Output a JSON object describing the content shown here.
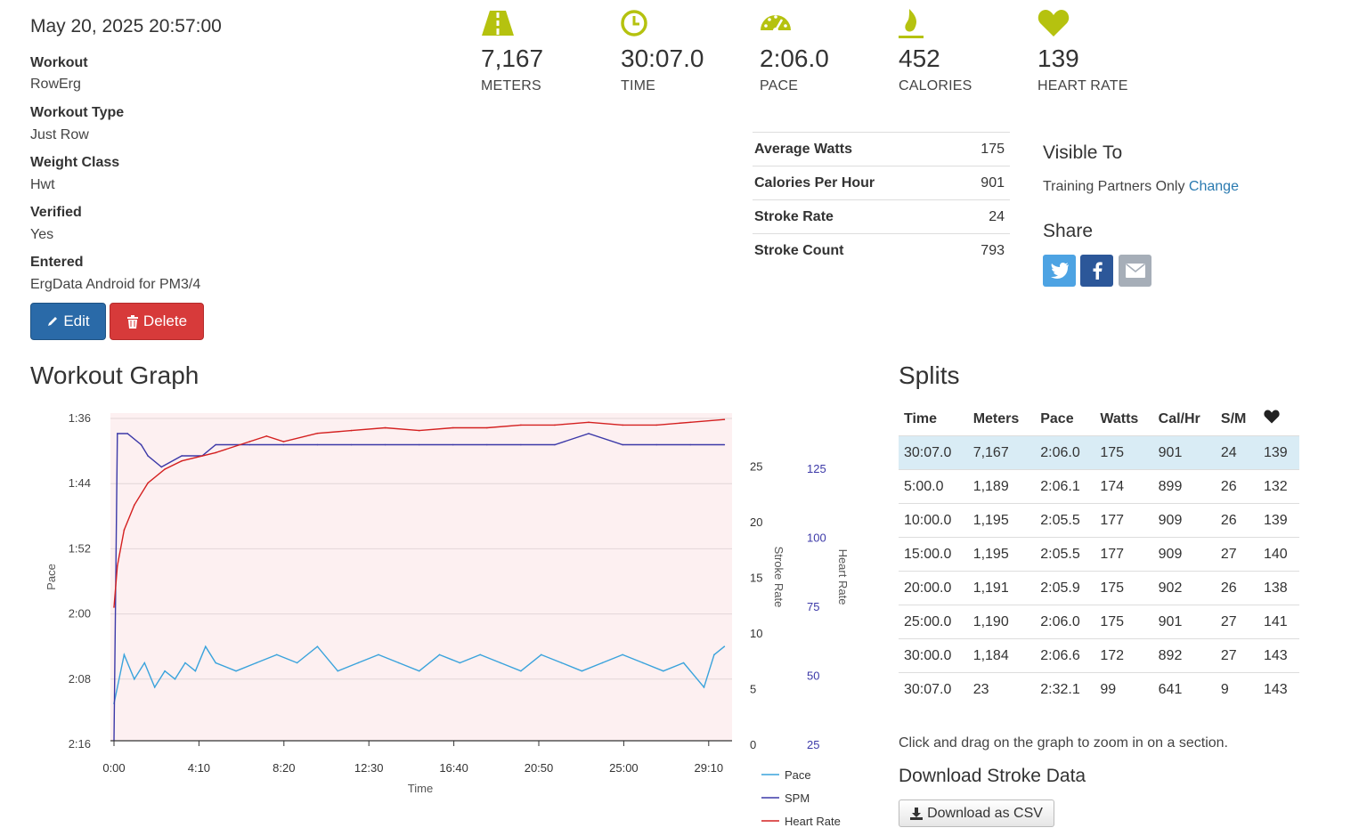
{
  "date": "May 20, 2025 20:57:00",
  "details": [
    {
      "label": "Workout",
      "value": "RowErg"
    },
    {
      "label": "Workout Type",
      "value": "Just Row"
    },
    {
      "label": "Weight Class",
      "value": "Hwt"
    },
    {
      "label": "Verified",
      "value": "Yes"
    },
    {
      "label": "Entered",
      "value": "ErgData Android for PM3/4"
    }
  ],
  "buttons": {
    "edit": "Edit",
    "delete": "Delete"
  },
  "stats": [
    {
      "icon": "road-icon",
      "value": "7,167",
      "label": "METERS"
    },
    {
      "icon": "clock-icon",
      "value": "30:07.0",
      "label": "TIME"
    },
    {
      "icon": "speedometer-icon",
      "value": "2:06.0",
      "label": "PACE"
    },
    {
      "icon": "flame-icon",
      "value": "452",
      "label": "CALORIES"
    },
    {
      "icon": "heart-icon",
      "value": "139",
      "label": "HEART RATE"
    }
  ],
  "metrics": [
    {
      "label": "Average Watts",
      "value": "175"
    },
    {
      "label": "Calories Per Hour",
      "value": "901"
    },
    {
      "label": "Stroke Rate",
      "value": "24"
    },
    {
      "label": "Stroke Count",
      "value": "793"
    }
  ],
  "visibility": {
    "title": "Visible To",
    "value": "Training Partners Only",
    "change": "Change"
  },
  "share": {
    "title": "Share",
    "buttons": [
      "twitter-icon",
      "facebook-icon",
      "email-icon"
    ]
  },
  "colors": {
    "accent": "#b5c20f",
    "pace": "#3aa3dc",
    "spm": "#3c39a8",
    "heart": "#d42020",
    "twitter": "#4da3e3",
    "facebook": "#2c5799",
    "email": "#a6aeb8"
  },
  "graph": {
    "title": "Workout Graph"
  },
  "chart_data": {
    "type": "line",
    "xlabel": "Time",
    "x_ticks": [
      "0:00",
      "4:10",
      "8:20",
      "12:30",
      "16:40",
      "20:50",
      "25:00",
      "29:10"
    ],
    "x_range_seconds": [
      0,
      1807
    ],
    "pace_axis": {
      "label": "Pace",
      "ticks": [
        "1:36",
        "1:44",
        "1:52",
        "2:00",
        "2:08",
        "2:16"
      ],
      "range_seconds": [
        96,
        136
      ]
    },
    "spm_axis": {
      "label": "Stroke Rate",
      "ticks": [
        "0",
        "5",
        "10",
        "15",
        "20",
        "25"
      ],
      "range": [
        0,
        29.5
      ]
    },
    "hr_axis": {
      "label": "Heart Rate",
      "ticks": [
        "25",
        "50",
        "75",
        "100",
        "125"
      ],
      "range": [
        25,
        142
      ]
    },
    "legend": [
      "Pace",
      "SPM",
      "Heart Rate"
    ],
    "series": [
      {
        "name": "Pace",
        "x": [
          0,
          30,
          60,
          90,
          120,
          150,
          180,
          210,
          240,
          270,
          300,
          360,
          420,
          480,
          540,
          600,
          660,
          720,
          780,
          840,
          900,
          960,
          1020,
          1080,
          1140,
          1200,
          1260,
          1320,
          1380,
          1440,
          1500,
          1560,
          1620,
          1680,
          1740,
          1770,
          1800
        ],
        "y": [
          131,
          125,
          128,
          126,
          129,
          127,
          128,
          126,
          127,
          124,
          126,
          127,
          126,
          125,
          126,
          124,
          127,
          126,
          125,
          126,
          127,
          125,
          126,
          125,
          126,
          127,
          125,
          126,
          127,
          126,
          125,
          126,
          127,
          126,
          129,
          125,
          124
        ]
      },
      {
        "name": "SPM",
        "x": [
          0,
          10,
          40,
          80,
          100,
          140,
          200,
          260,
          300,
          400,
          500,
          600,
          700,
          800,
          900,
          1000,
          1100,
          1200,
          1300,
          1400,
          1500,
          1600,
          1700,
          1800
        ],
        "y": [
          0,
          28,
          28,
          27,
          26,
          25,
          26,
          26,
          27,
          27,
          27,
          27,
          27,
          27,
          27,
          27,
          27,
          27,
          27,
          28,
          27,
          27,
          27,
          27
        ]
      },
      {
        "name": "Heart Rate",
        "x": [
          0,
          10,
          30,
          60,
          100,
          150,
          200,
          300,
          400,
          450,
          500,
          600,
          700,
          800,
          900,
          1000,
          1100,
          1200,
          1300,
          1400,
          1500,
          1600,
          1700,
          1800
        ],
        "y": [
          75,
          90,
          103,
          112,
          120,
          125,
          128,
          131,
          135,
          137,
          135,
          138,
          139,
          140,
          139,
          140,
          140,
          141,
          141,
          142,
          141,
          141,
          142,
          143
        ]
      }
    ]
  },
  "splits": {
    "title": "Splits",
    "headers": [
      "Time",
      "Meters",
      "Pace",
      "Watts",
      "Cal/Hr",
      "S/M"
    ],
    "heart_header_icon": "heart-icon",
    "rows": [
      [
        "30:07.0",
        "7,167",
        "2:06.0",
        "175",
        "901",
        "24",
        "139"
      ],
      [
        "5:00.0",
        "1,189",
        "2:06.1",
        "174",
        "899",
        "26",
        "132"
      ],
      [
        "10:00.0",
        "1,195",
        "2:05.5",
        "177",
        "909",
        "26",
        "139"
      ],
      [
        "15:00.0",
        "1,195",
        "2:05.5",
        "177",
        "909",
        "27",
        "140"
      ],
      [
        "20:00.0",
        "1,191",
        "2:05.9",
        "175",
        "902",
        "26",
        "138"
      ],
      [
        "25:00.0",
        "1,190",
        "2:06.0",
        "175",
        "901",
        "27",
        "141"
      ],
      [
        "30:00.0",
        "1,184",
        "2:06.6",
        "172",
        "892",
        "27",
        "143"
      ],
      [
        "30:07.0",
        "23",
        "2:32.1",
        "99",
        "641",
        "9",
        "143"
      ]
    ]
  },
  "zoom_hint": "Click and drag on the graph to zoom in on a section.",
  "download": {
    "title": "Download Stroke Data",
    "button": "Download as CSV"
  }
}
